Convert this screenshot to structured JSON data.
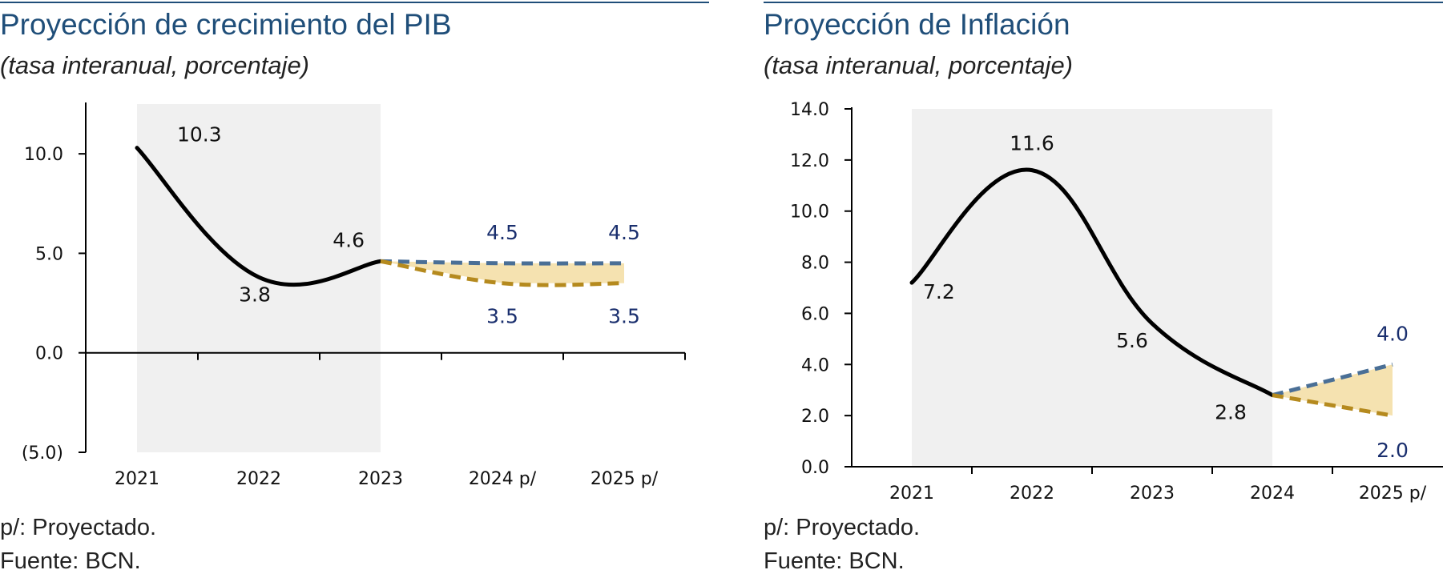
{
  "charts": [
    {
      "id": "pib",
      "title": "Proyección de crecimiento del PIB",
      "subtitle": "(tasa interanual, porcentaje)",
      "notes": [
        "p/: Proyectado.",
        "Fuente: BCN."
      ]
    },
    {
      "id": "inf",
      "title": "Proyección de Inflación",
      "subtitle": "(tasa interanual, porcentaje)",
      "notes": [
        "p/: Proyectado.",
        "Fuente: BCN."
      ]
    }
  ],
  "colors": {
    "title": "#1f4e79",
    "actual_line": "#000000",
    "upper_projection": "#4a6f96",
    "lower_projection": "#b58a1e",
    "band_fill": "#f5e2b0",
    "shade": "#f0f0f0",
    "projection_label": "#1a2f6e"
  },
  "chart_data": [
    {
      "type": "line",
      "title": "Proyección de crecimiento del PIB",
      "categories": [
        "2021",
        "2022",
        "2023",
        "2024 p/",
        "2025 p/"
      ],
      "ylim": [
        -5,
        12.5
      ],
      "yticks": [
        -5,
        0,
        5,
        10
      ],
      "ytick_labels": [
        "(5.0)",
        "0.0",
        "5.0",
        "10.0"
      ],
      "shaded_range": [
        "2021",
        "2023"
      ],
      "series": [
        {
          "key": "actual",
          "values": [
            10.3,
            3.8,
            4.6,
            null,
            null
          ],
          "labels": [
            "10.3",
            "3.8",
            "4.6",
            null,
            null
          ]
        },
        {
          "key": "upper",
          "values": [
            null,
            null,
            4.6,
            4.5,
            4.5
          ],
          "labels": [
            null,
            null,
            null,
            "4.5",
            "4.5"
          ]
        },
        {
          "key": "lower",
          "values": [
            null,
            null,
            4.6,
            3.5,
            3.5
          ],
          "labels": [
            null,
            null,
            null,
            "3.5",
            "3.5"
          ]
        }
      ]
    },
    {
      "type": "line",
      "title": "Proyección de Inflación",
      "categories": [
        "2021",
        "2022",
        "2023",
        "2024",
        "2025 p/"
      ],
      "ylim": [
        0,
        14
      ],
      "yticks": [
        0,
        2,
        4,
        6,
        8,
        10,
        12,
        14
      ],
      "ytick_labels": [
        "0.0",
        "2.0",
        "4.0",
        "6.0",
        "8.0",
        "10.0",
        "12.0",
        "14.0"
      ],
      "shaded_range": [
        "2021",
        "2024"
      ],
      "series": [
        {
          "key": "actual",
          "values": [
            7.2,
            11.6,
            5.6,
            2.8,
            null
          ],
          "labels": [
            "7.2",
            "11.6",
            "5.6",
            "2.8",
            null
          ]
        },
        {
          "key": "upper",
          "values": [
            null,
            null,
            null,
            2.8,
            4.0
          ],
          "labels": [
            null,
            null,
            null,
            null,
            "4.0"
          ]
        },
        {
          "key": "lower",
          "values": [
            null,
            null,
            null,
            2.8,
            2.0
          ],
          "labels": [
            null,
            null,
            null,
            null,
            "2.0"
          ]
        }
      ]
    }
  ]
}
